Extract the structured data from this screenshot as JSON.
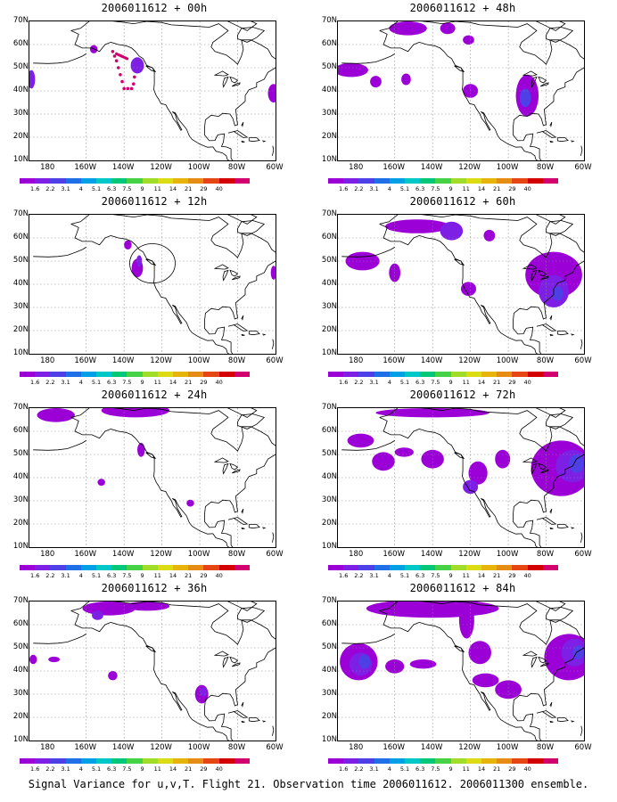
{
  "caption": "Signal Variance for u,v,T. Flight 21. Observation time 2006011612. 2006011300 ensemble.",
  "y_axis_labels": [
    "70N",
    "60N",
    "50N",
    "40N",
    "30N",
    "20N",
    "10N"
  ],
  "x_axis_labels": [
    "180",
    "160W",
    "140W",
    "120W",
    "100W",
    "80W",
    "60W"
  ],
  "colorbar": {
    "colors": [
      "#9b00d6",
      "#7e1fe6",
      "#4f3fe6",
      "#1f6fe6",
      "#00a0e6",
      "#00c8c8",
      "#00c878",
      "#46d246",
      "#a0dc28",
      "#dcdc14",
      "#e6b40a",
      "#e68c14",
      "#e64614",
      "#d20000",
      "#d2006e"
    ],
    "labels": [
      "1.6",
      "2.2",
      "3.1",
      "4",
      "5.1",
      "6.3",
      "7.5",
      "9",
      "11",
      "14",
      "21",
      "29",
      "40"
    ]
  },
  "panels": [
    {
      "title": "2006011612 + 00h"
    },
    {
      "title": "2006011612 + 48h"
    },
    {
      "title": "2006011612 + 12h"
    },
    {
      "title": "2006011612 + 60h"
    },
    {
      "title": "2006011612 + 24h"
    },
    {
      "title": "2006011612 + 72h"
    },
    {
      "title": "2006011612 + 36h"
    },
    {
      "title": "2006011612 + 84h"
    }
  ],
  "map_colors": {
    "low": "#9b00d6",
    "mid": "#7e1fe6",
    "high": "#4f3fe6",
    "obs": "#d2006e"
  }
}
